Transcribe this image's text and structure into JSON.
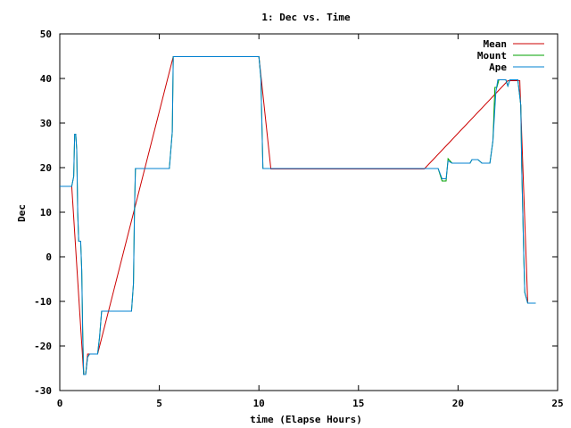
{
  "chart_data": {
    "type": "line",
    "title": "1: Dec vs. Time",
    "xlabel": "time (Elapse Hours)",
    "ylabel": "Dec",
    "xlim": [
      0,
      25
    ],
    "ylim": [
      -30,
      50
    ],
    "x_ticks": [
      "0",
      "5",
      "10",
      "15",
      "20",
      "25"
    ],
    "y_ticks": [
      "50",
      "40",
      "30",
      "20",
      "10",
      "0",
      "-10",
      "-20",
      "-30"
    ],
    "grid": false,
    "legend_position": "top-right",
    "series": [
      {
        "name": "Mean",
        "color": "#cc0000",
        "points": [
          [
            0.0,
            15.8
          ],
          [
            0.6,
            15.8
          ],
          [
            1.2,
            -26.4
          ],
          [
            1.3,
            -26.4
          ],
          [
            1.4,
            -21.8
          ],
          [
            1.9,
            -21.8
          ],
          [
            5.7,
            44.9
          ],
          [
            10.0,
            44.9
          ],
          [
            10.6,
            19.7
          ],
          [
            18.3,
            19.7
          ],
          [
            22.5,
            39.5
          ],
          [
            23.1,
            39.5
          ],
          [
            23.5,
            -10.4
          ],
          [
            23.9,
            -10.4
          ]
        ]
      },
      {
        "name": "Mount",
        "color": "#00a000",
        "points": [
          [
            0.0,
            15.8
          ],
          [
            0.6,
            15.8
          ],
          [
            0.7,
            18.0
          ],
          [
            0.75,
            27.5
          ],
          [
            0.8,
            27.5
          ],
          [
            0.85,
            24.0
          ],
          [
            0.9,
            10.0
          ],
          [
            0.95,
            3.5
          ],
          [
            1.05,
            3.5
          ],
          [
            1.1,
            -3.0
          ],
          [
            1.15,
            -16.5
          ],
          [
            1.2,
            -26.4
          ],
          [
            1.3,
            -26.4
          ],
          [
            1.4,
            -22.5
          ],
          [
            1.5,
            -21.8
          ],
          [
            1.9,
            -21.8
          ],
          [
            2.0,
            -18.0
          ],
          [
            2.1,
            -12.2
          ],
          [
            3.6,
            -12.2
          ],
          [
            3.7,
            -6.0
          ],
          [
            3.75,
            10.0
          ],
          [
            3.8,
            19.8
          ],
          [
            5.5,
            19.8
          ],
          [
            5.65,
            28.0
          ],
          [
            5.7,
            44.9
          ],
          [
            10.0,
            44.9
          ],
          [
            10.1,
            40.0
          ],
          [
            10.2,
            19.8
          ],
          [
            18.0,
            19.8
          ],
          [
            19.0,
            19.8
          ],
          [
            19.2,
            17.0
          ],
          [
            19.4,
            17.0
          ],
          [
            19.5,
            22.0
          ],
          [
            19.7,
            21.0
          ],
          [
            20.4,
            21.0
          ],
          [
            20.6,
            21.0
          ],
          [
            20.7,
            21.8
          ],
          [
            21.0,
            21.8
          ],
          [
            21.2,
            21.0
          ],
          [
            21.6,
            21.0
          ],
          [
            21.75,
            26.0
          ],
          [
            21.85,
            38.0
          ],
          [
            21.95,
            38.0
          ],
          [
            22.05,
            39.7
          ],
          [
            22.4,
            39.7
          ],
          [
            22.5,
            38.3
          ],
          [
            22.6,
            39.7
          ],
          [
            23.0,
            39.7
          ],
          [
            23.15,
            34.0
          ],
          [
            23.2,
            20.0
          ],
          [
            23.3,
            0.0
          ],
          [
            23.35,
            -8.0
          ],
          [
            23.5,
            -10.4
          ],
          [
            23.9,
            -10.4
          ]
        ]
      },
      {
        "name": "Ape",
        "color": "#0080d0",
        "points": [
          [
            0.0,
            15.8
          ],
          [
            0.6,
            15.8
          ],
          [
            0.7,
            18.0
          ],
          [
            0.75,
            27.5
          ],
          [
            0.8,
            27.5
          ],
          [
            0.85,
            24.0
          ],
          [
            0.9,
            10.0
          ],
          [
            0.95,
            3.5
          ],
          [
            1.05,
            3.5
          ],
          [
            1.1,
            -3.0
          ],
          [
            1.15,
            -18.0
          ],
          [
            1.2,
            -26.4
          ],
          [
            1.3,
            -26.4
          ],
          [
            1.4,
            -22.5
          ],
          [
            1.5,
            -21.8
          ],
          [
            1.9,
            -21.8
          ],
          [
            2.0,
            -18.0
          ],
          [
            2.1,
            -12.2
          ],
          [
            3.6,
            -12.2
          ],
          [
            3.7,
            -6.0
          ],
          [
            3.75,
            10.0
          ],
          [
            3.8,
            19.8
          ],
          [
            5.5,
            19.8
          ],
          [
            5.65,
            28.0
          ],
          [
            5.7,
            44.9
          ],
          [
            10.0,
            44.9
          ],
          [
            10.1,
            40.0
          ],
          [
            10.2,
            19.8
          ],
          [
            18.0,
            19.8
          ],
          [
            19.0,
            19.8
          ],
          [
            19.2,
            17.5
          ],
          [
            19.4,
            17.5
          ],
          [
            19.5,
            21.5
          ],
          [
            19.7,
            21.0
          ],
          [
            20.4,
            21.0
          ],
          [
            20.6,
            21.0
          ],
          [
            20.7,
            21.8
          ],
          [
            21.0,
            21.8
          ],
          [
            21.2,
            21.0
          ],
          [
            21.6,
            21.0
          ],
          [
            21.75,
            26.0
          ],
          [
            21.9,
            37.0
          ],
          [
            22.0,
            39.7
          ],
          [
            22.4,
            39.7
          ],
          [
            22.5,
            38.3
          ],
          [
            22.6,
            39.7
          ],
          [
            23.0,
            39.7
          ],
          [
            23.15,
            34.0
          ],
          [
            23.2,
            20.0
          ],
          [
            23.3,
            0.0
          ],
          [
            23.35,
            -8.0
          ],
          [
            23.5,
            -10.4
          ],
          [
            23.9,
            -10.4
          ]
        ]
      }
    ]
  }
}
